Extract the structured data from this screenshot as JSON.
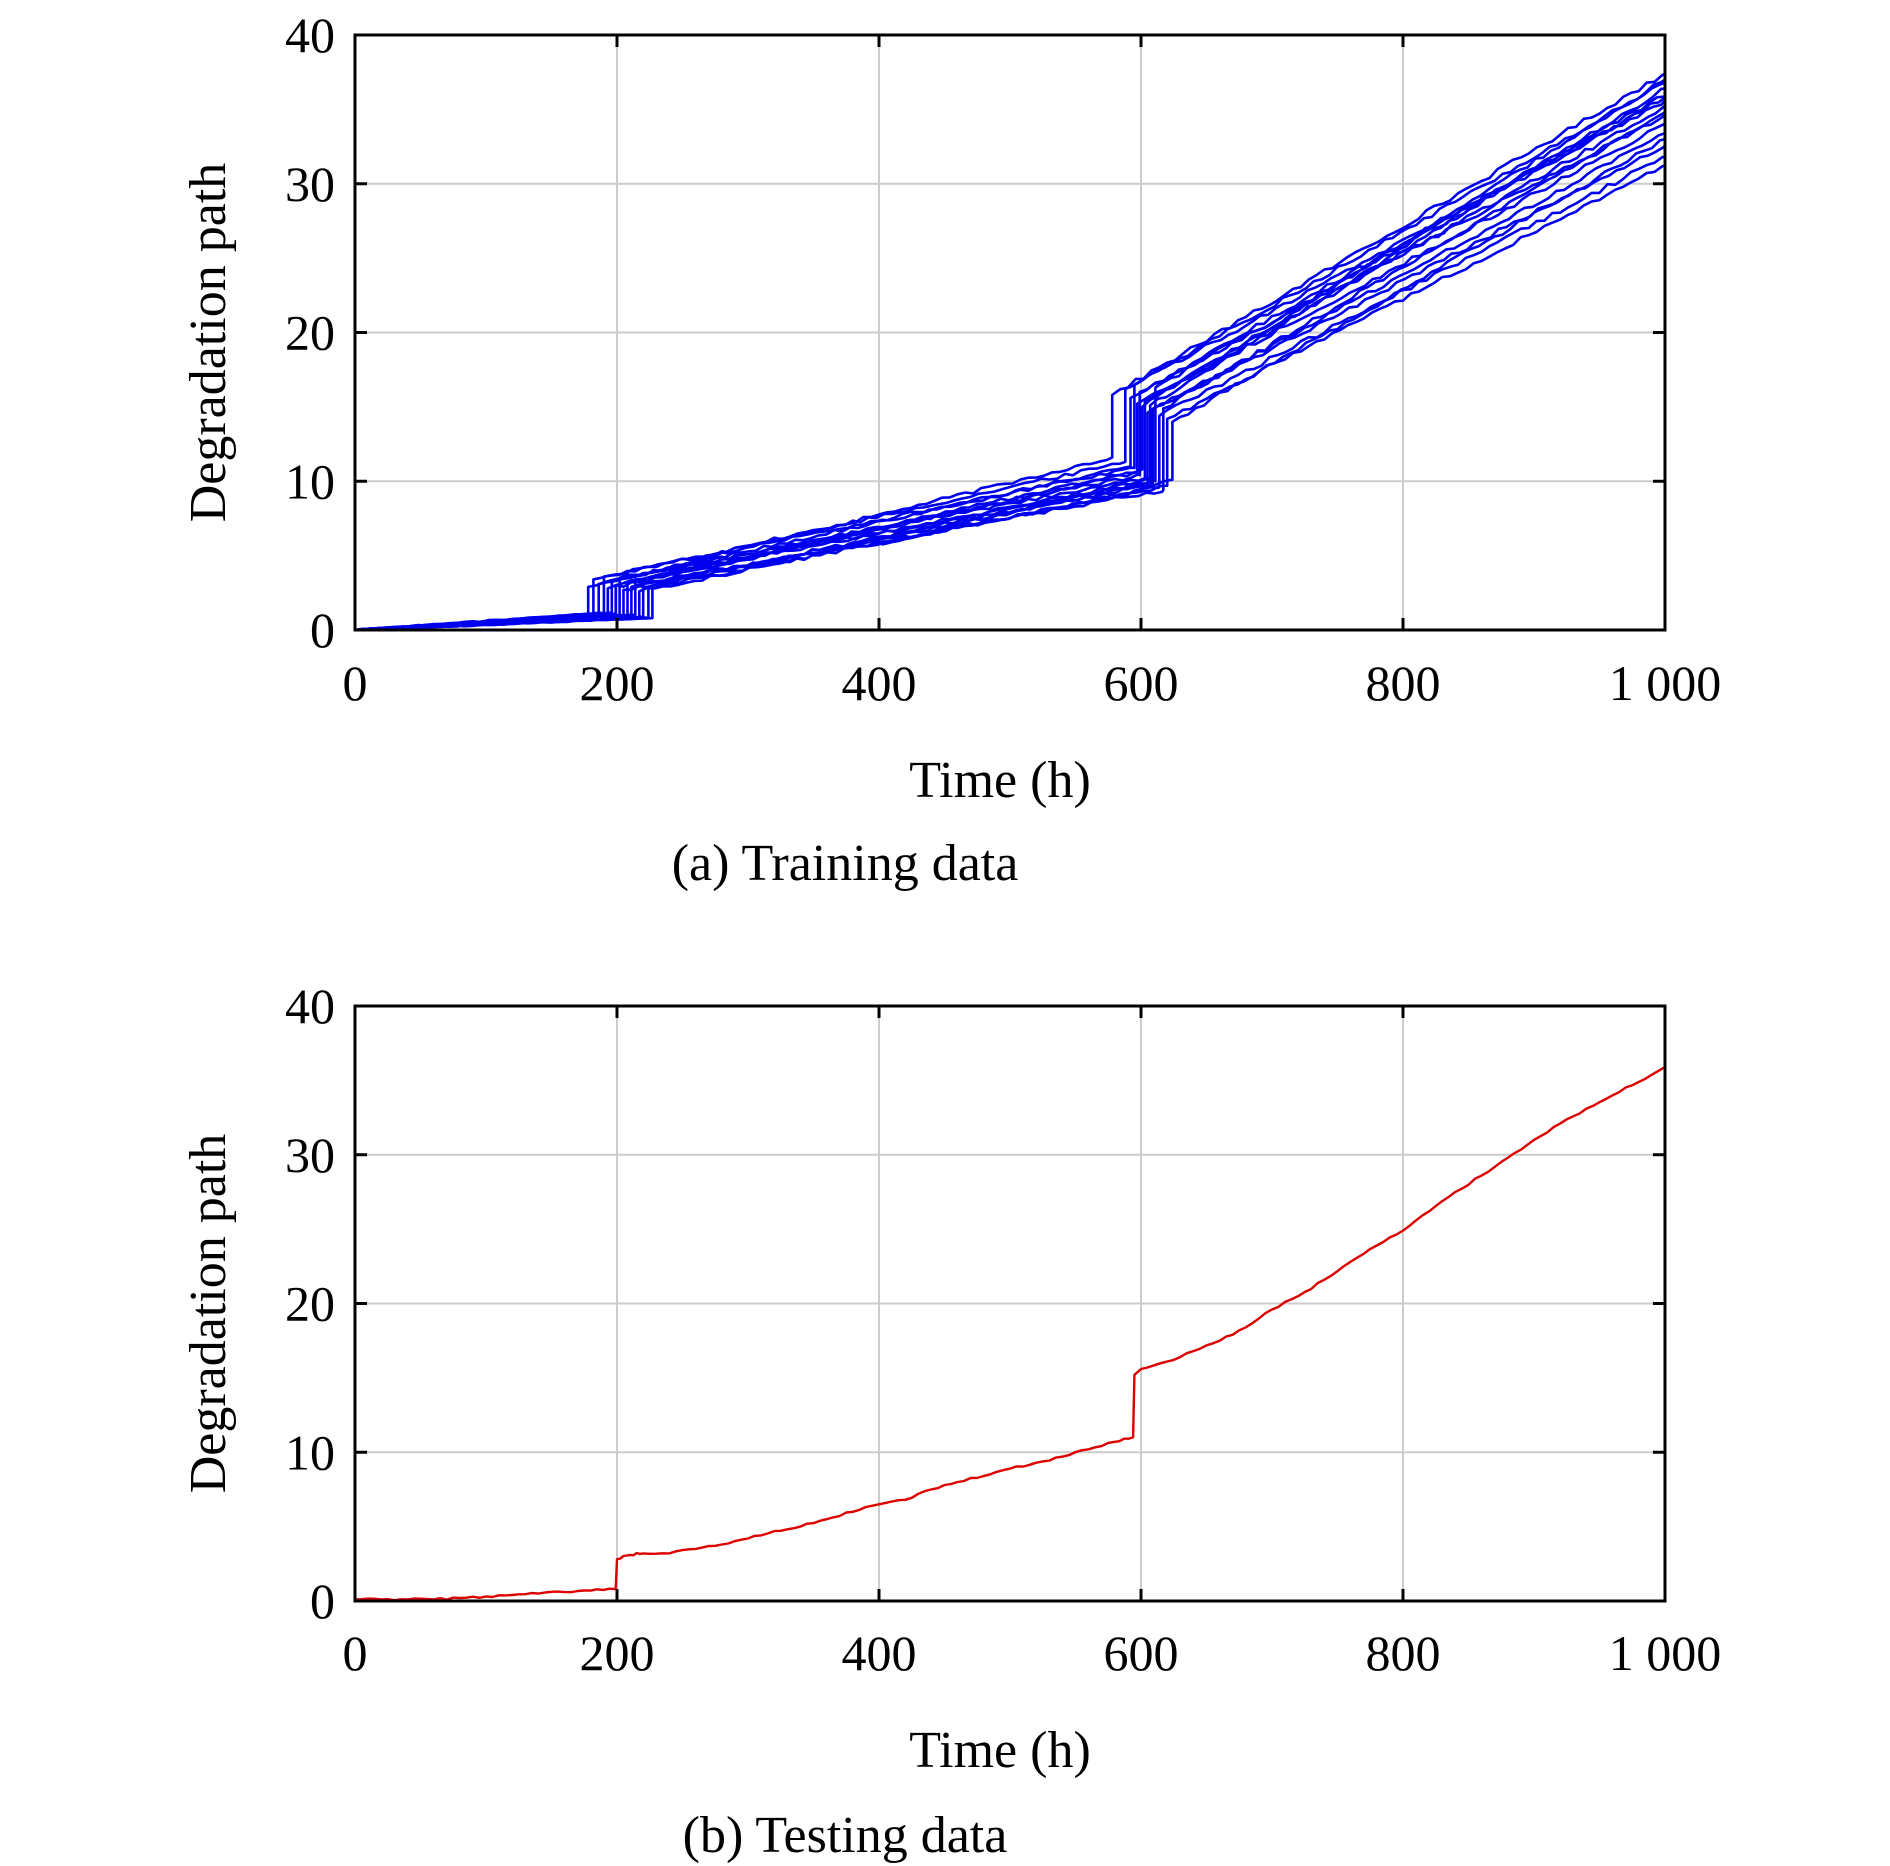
{
  "chart_data": [
    {
      "type": "line",
      "caption": "(a) Training data",
      "xlabel": "Time (h)",
      "ylabel": "Degradation path",
      "xlim": [
        0,
        1000
      ],
      "ylim": [
        0,
        40
      ],
      "xticks": [
        0,
        200,
        400,
        600,
        800,
        1000
      ],
      "xtick_labels": [
        "0",
        "200",
        "400",
        "600",
        "800",
        "1 000"
      ],
      "yticks": [
        0,
        10,
        20,
        30,
        40
      ],
      "ytick_labels": [
        "0",
        "10",
        "20",
        "30",
        "40"
      ],
      "grid": true,
      "legend": "none",
      "color": "#0000ee",
      "series": [
        {
          "jump1_time": 178,
          "pre1": 1.0,
          "post1": 2.9,
          "jump2_time": 578,
          "pre2": 11.6,
          "post2": 15.8,
          "end": 37.4
        },
        {
          "jump1_time": 182,
          "pre1": 1.1,
          "post1": 3.4,
          "jump2_time": 588,
          "pre2": 11.3,
          "post2": 16.2,
          "end": 36.8
        },
        {
          "jump1_time": 186,
          "pre1": 1.0,
          "post1": 3.1,
          "jump2_time": 592,
          "pre2": 11.0,
          "post2": 15.6,
          "end": 36.0
        },
        {
          "jump1_time": 190,
          "pre1": 1.1,
          "post1": 3.6,
          "jump2_time": 595,
          "pre2": 10.9,
          "post2": 16.5,
          "end": 35.6
        },
        {
          "jump1_time": 193,
          "pre1": 1.0,
          "post1": 2.8,
          "jump2_time": 597,
          "pre2": 10.6,
          "post2": 15.2,
          "end": 35.2
        },
        {
          "jump1_time": 196,
          "pre1": 1.2,
          "post1": 3.3,
          "jump2_time": 599,
          "pre2": 10.4,
          "post2": 16.0,
          "end": 34.6
        },
        {
          "jump1_time": 199,
          "pre1": 1.1,
          "post1": 3.0,
          "jump2_time": 601,
          "pre2": 10.8,
          "post2": 15.0,
          "end": 37.0
        },
        {
          "jump1_time": 202,
          "pre1": 1.0,
          "post1": 3.5,
          "jump2_time": 603,
          "pre2": 10.2,
          "post2": 15.4,
          "end": 34.0
        },
        {
          "jump1_time": 205,
          "pre1": 0.9,
          "post1": 2.7,
          "jump2_time": 605,
          "pre2": 9.9,
          "post2": 14.6,
          "end": 33.4
        },
        {
          "jump1_time": 208,
          "pre1": 1.0,
          "post1": 3.2,
          "jump2_time": 607,
          "pre2": 10.1,
          "post2": 15.1,
          "end": 36.4
        },
        {
          "jump1_time": 211,
          "pre1": 0.9,
          "post1": 2.9,
          "jump2_time": 609,
          "pre2": 9.8,
          "post2": 14.8,
          "end": 32.6
        },
        {
          "jump1_time": 214,
          "pre1": 1.0,
          "post1": 3.4,
          "jump2_time": 611,
          "pre2": 10.0,
          "post2": 16.3,
          "end": 35.8
        },
        {
          "jump1_time": 217,
          "pre1": 0.8,
          "post1": 2.6,
          "jump2_time": 614,
          "pre2": 9.6,
          "post2": 14.4,
          "end": 31.8
        },
        {
          "jump1_time": 220,
          "pre1": 0.9,
          "post1": 3.1,
          "jump2_time": 617,
          "pre2": 9.4,
          "post2": 14.9,
          "end": 34.8
        },
        {
          "jump1_time": 224,
          "pre1": 0.8,
          "post1": 2.8,
          "jump2_time": 620,
          "pre2": 9.7,
          "post2": 14.2,
          "end": 31.2
        },
        {
          "jump1_time": 227,
          "pre1": 0.8,
          "post1": 3.0,
          "jump2_time": 624,
          "pre2": 10.1,
          "post2": 14.0,
          "end": 33.0
        }
      ]
    },
    {
      "type": "line",
      "caption": "(b) Testing data",
      "xlabel": "Time (h)",
      "ylabel": "Degradation path",
      "xlim": [
        0,
        1000
      ],
      "ylim": [
        0,
        40
      ],
      "xticks": [
        0,
        200,
        400,
        600,
        800,
        1000
      ],
      "xtick_labels": [
        "0",
        "200",
        "400",
        "600",
        "800",
        "1 000"
      ],
      "yticks": [
        0,
        10,
        20,
        30,
        40
      ],
      "ytick_labels": [
        "0",
        "10",
        "20",
        "30",
        "40"
      ],
      "grid": true,
      "legend": "none",
      "color": "#dd0000",
      "series": [
        {
          "x": [
            0,
            20,
            40,
            60,
            80,
            100,
            120,
            140,
            160,
            180,
            199,
            200,
            210,
            220,
            240,
            260,
            280,
            300,
            320,
            340,
            360,
            380,
            400,
            420,
            440,
            460,
            480,
            500,
            520,
            540,
            560,
            580,
            594,
            595,
            600,
            620,
            640,
            660,
            680,
            700,
            720,
            740,
            760,
            780,
            800,
            820,
            840,
            860,
            880,
            900,
            920,
            940,
            960,
            980,
            1000
          ],
          "y": [
            0.1,
            0.1,
            0.1,
            0.1,
            0.2,
            0.3,
            0.4,
            0.5,
            0.6,
            0.7,
            0.8,
            2.8,
            3.1,
            3.2,
            3.2,
            3.5,
            3.8,
            4.2,
            4.7,
            5.0,
            5.5,
            6.0,
            6.5,
            6.8,
            7.5,
            8.0,
            8.4,
            8.9,
            9.3,
            9.7,
            10.2,
            10.7,
            11.0,
            15.2,
            15.6,
            16.1,
            16.8,
            17.5,
            18.4,
            19.6,
            20.5,
            21.6,
            22.8,
            23.9,
            24.9,
            26.2,
            27.5,
            28.6,
            29.8,
            31.0,
            32.1,
            33.1,
            34.0,
            34.9,
            35.9
          ]
        }
      ]
    }
  ]
}
